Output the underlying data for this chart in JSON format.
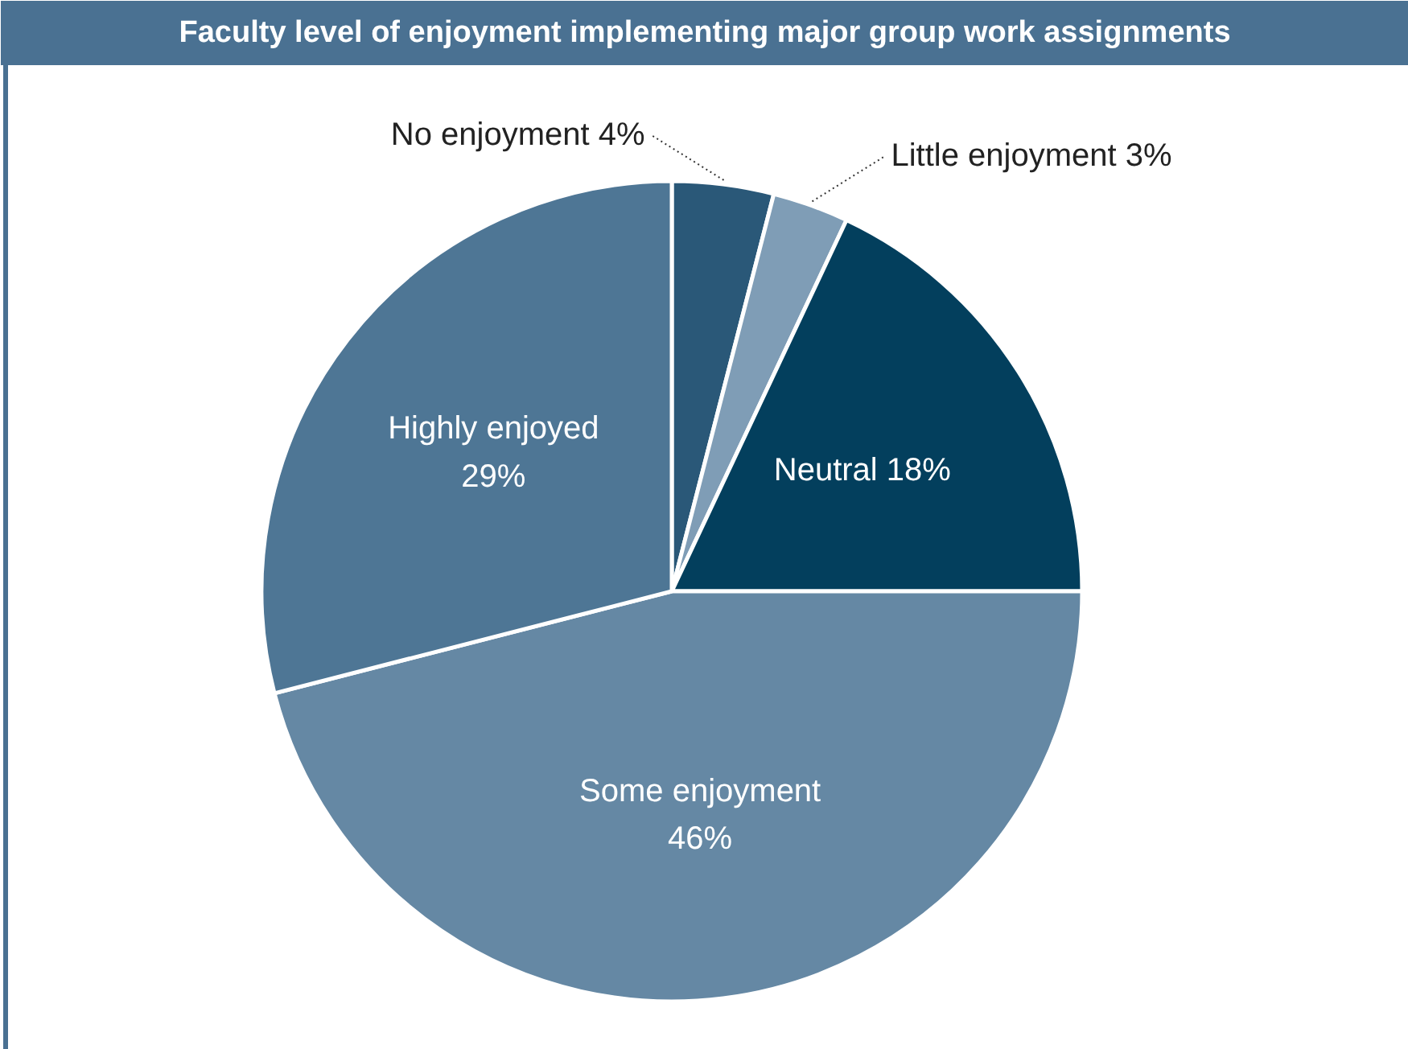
{
  "chart_data": {
    "type": "pie",
    "title": "Faculty level of enjoyment implementing major group work assignments",
    "categories": [
      "No enjoyment",
      "Little enjoyment",
      "Neutral",
      "Some enjoyment",
      "Highly enjoyed"
    ],
    "values": [
      4,
      3,
      18,
      46,
      29
    ],
    "colors": [
      "#2a5878",
      "#7f9db6",
      "#033f5d",
      "#6588a4",
      "#4e7695"
    ],
    "value_labels": [
      "4%",
      "3%",
      "18%",
      "46%",
      "29%"
    ]
  }
}
